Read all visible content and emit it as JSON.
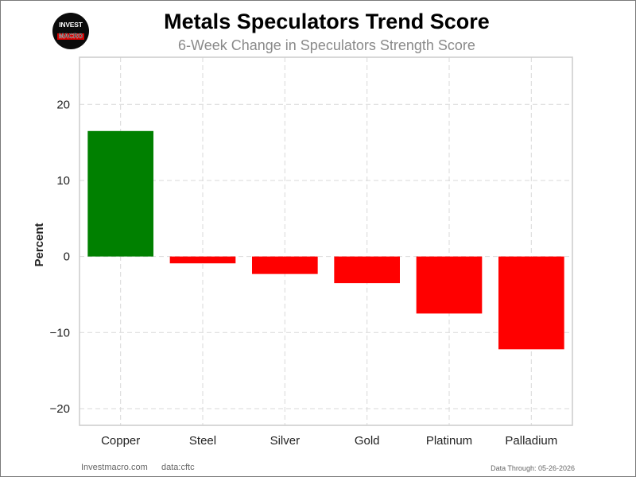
{
  "logo": {
    "line1": "INVEST",
    "line2": "MACRO"
  },
  "footer": {
    "source": "Investmacro.com",
    "data_source": "data:cftc",
    "data_through": "Data Through: 05-26-2026"
  },
  "colors": {
    "positive": "#008000",
    "negative": "#ff0000",
    "grid": "#d9d9d9",
    "axis_border": "#cccccc",
    "subtitle": "#8a8a8a"
  },
  "chart_data": {
    "type": "bar",
    "title": "Metals Speculators Trend Score",
    "subtitle": "6-Week Change in Speculators Strength Score",
    "xlabel": "",
    "ylabel": "Percent",
    "categories": [
      "Copper",
      "Steel",
      "Silver",
      "Gold",
      "Platinum",
      "Palladium"
    ],
    "values": [
      16.5,
      -0.9,
      -2.3,
      -3.5,
      -7.5,
      -12.2
    ],
    "ylim": [
      -22.2,
      26.2
    ],
    "yticks": [
      -20,
      -10,
      0,
      10,
      20
    ],
    "ytick_labels": [
      "−20",
      "−10",
      "0",
      "10",
      "20"
    ],
    "grid": true,
    "legend": "none"
  }
}
